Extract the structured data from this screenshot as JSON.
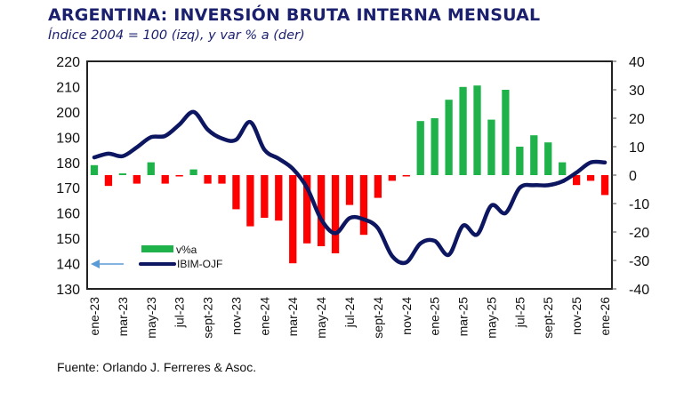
{
  "header": {
    "title": "ARGENTINA: INVERSIÓN BRUTA INTERNA MENSUAL",
    "subtitle": "Índice 2004 = 100 (izq), y var % a (der)"
  },
  "footer": {
    "source": "Fuente: Orlando J. Ferreres & Asoc."
  },
  "chart_data": {
    "type": "bar+line",
    "title": "ARGENTINA: INVERSIÓN BRUTA INTERNA MENSUAL",
    "subtitle": "Índice 2004 = 100 (izq), y var % a (der)",
    "months": [
      "ene-23",
      "feb-23",
      "mar-23",
      "abr-23",
      "may-23",
      "jun-23",
      "jul-23",
      "ago-23",
      "sept-23",
      "oct-23",
      "nov-23",
      "dic-23",
      "ene-24",
      "feb-24",
      "mar-24",
      "abr-24",
      "may-24",
      "jun-24",
      "jul-24",
      "ago-24",
      "sept-24",
      "oct-24",
      "nov-24",
      "dic-24",
      "ene-25",
      "feb-25",
      "mar-25",
      "abr-25",
      "may-25",
      "jun-25",
      "jul-25",
      "ago-25",
      "sept-25",
      "oct-25",
      "nov-25",
      "dic-25",
      "ene-26"
    ],
    "x_tick_labels": [
      "ene-23",
      "mar-23",
      "may-23",
      "jul-23",
      "sept-23",
      "nov-23",
      "ene-24",
      "mar-24",
      "may-24",
      "jul-24",
      "sept-24",
      "nov-24",
      "ene-25",
      "mar-25",
      "may-25",
      "jul-25",
      "sept-25",
      "nov-25",
      "ene-26"
    ],
    "y_left": {
      "label": "Índice 2004 = 100",
      "ylim": [
        130,
        220
      ],
      "ticks": [
        130,
        140,
        150,
        160,
        170,
        180,
        190,
        200,
        210,
        220
      ]
    },
    "y_right": {
      "label": "var % a",
      "ylim": [
        -40,
        40
      ],
      "ticks": [
        -40,
        -30,
        -20,
        -10,
        0,
        10,
        20,
        30,
        40
      ]
    },
    "series": [
      {
        "name": "v%a",
        "type": "bar",
        "axis": "right",
        "positive_color": "#1fb24a",
        "negative_color": "#ff0000",
        "values": [
          3.5,
          -3.8,
          0.6,
          -3,
          4.5,
          -3,
          -0.3,
          2,
          -3,
          -3,
          -12,
          -18,
          -15,
          -16,
          -31,
          -24,
          -25,
          -27.5,
          -10.5,
          -21,
          -8,
          -2,
          -0.3,
          19,
          20,
          26.5,
          31,
          31.5,
          19.5,
          30,
          10,
          14,
          11.5,
          4.5,
          -3.5,
          -2,
          -7
        ]
      },
      {
        "name": "IBIM-OJF",
        "type": "line",
        "axis": "left",
        "color": "#0d1660",
        "values": [
          182,
          183.5,
          182.5,
          186,
          190,
          190.5,
          195,
          200,
          193,
          189.5,
          189,
          196,
          185,
          181.5,
          177.5,
          170,
          157.5,
          152,
          158,
          157.5,
          154,
          143,
          140.5,
          148,
          149,
          143.5,
          155,
          151.5,
          163,
          160,
          170,
          171,
          171,
          172.5,
          176,
          180,
          180
        ]
      }
    ],
    "legend": {
      "entries": [
        "v%a",
        "IBIM-OJF"
      ],
      "position": "bottom-left"
    },
    "annotation": {
      "type": "arrow",
      "direction": "left",
      "meaning": "left axis indicator"
    }
  }
}
